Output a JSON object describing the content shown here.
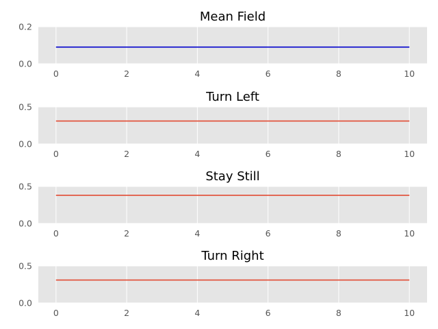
{
  "chart_data": [
    {
      "type": "line",
      "title": "Mean Field",
      "x": [
        0,
        10
      ],
      "series": [
        {
          "values": [
            0.09,
            0.09
          ],
          "color": "#0000cc"
        }
      ],
      "xlim": [
        -0.5,
        10.5
      ],
      "ylim": [
        0,
        0.2
      ],
      "xticks": [
        0,
        2,
        4,
        6,
        8,
        10
      ],
      "xtick_labels": [
        "0",
        "2",
        "4",
        "6",
        "8",
        "10"
      ],
      "yticks": [
        0,
        0.2
      ],
      "ytick_labels": [
        "0.0",
        "0.2"
      ],
      "grid": true
    },
    {
      "type": "line",
      "title": "Turn Left",
      "x": [
        0,
        10
      ],
      "series": [
        {
          "values": [
            0.31,
            0.31
          ],
          "color": "#e24a33"
        }
      ],
      "xlim": [
        -0.5,
        10.5
      ],
      "ylim": [
        0,
        0.5
      ],
      "xticks": [
        0,
        2,
        4,
        6,
        8,
        10
      ],
      "xtick_labels": [
        "0",
        "2",
        "4",
        "6",
        "8",
        "10"
      ],
      "yticks": [
        0,
        0.5
      ],
      "ytick_labels": [
        "0.0",
        "0.5"
      ],
      "grid": true
    },
    {
      "type": "line",
      "title": "Stay Still",
      "x": [
        0,
        10
      ],
      "series": [
        {
          "values": [
            0.38,
            0.38
          ],
          "color": "#e24a33"
        }
      ],
      "xlim": [
        -0.5,
        10.5
      ],
      "ylim": [
        0,
        0.5
      ],
      "xticks": [
        0,
        2,
        4,
        6,
        8,
        10
      ],
      "xtick_labels": [
        "0",
        "2",
        "4",
        "6",
        "8",
        "10"
      ],
      "yticks": [
        0,
        0.5
      ],
      "ytick_labels": [
        "0.0",
        "0.5"
      ],
      "grid": true
    },
    {
      "type": "line",
      "title": "Turn Right",
      "x": [
        0,
        10
      ],
      "series": [
        {
          "values": [
            0.31,
            0.31
          ],
          "color": "#e24a33"
        }
      ],
      "xlim": [
        -0.5,
        10.5
      ],
      "ylim": [
        0,
        0.5
      ],
      "xticks": [
        0,
        2,
        4,
        6,
        8,
        10
      ],
      "xtick_labels": [
        "0",
        "2",
        "4",
        "6",
        "8",
        "10"
      ],
      "yticks": [
        0,
        0.5
      ],
      "ytick_labels": [
        "0.0",
        "0.5"
      ],
      "grid": true
    }
  ],
  "colors": {
    "plot_background": "#e5e5e5",
    "grid": "#ffffff",
    "tick_label": "#555555",
    "title": "#000000"
  }
}
